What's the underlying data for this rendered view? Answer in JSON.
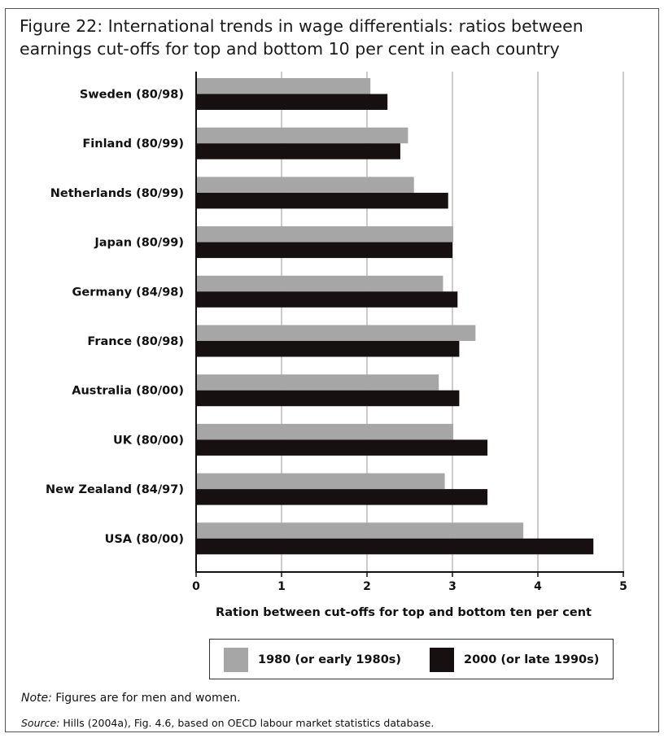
{
  "title": "Figure 22: International trends in wage differentials: ratios between earnings cut-offs for top and bottom 10 per cent in each country",
  "note": {
    "label": "Note:",
    "text": " Figures are for men and women."
  },
  "source": {
    "label": "Source:",
    "text": " Hills (2004a), Fig. 4.6, based on OECD labour market statistics database."
  },
  "colors": {
    "series_1980": "#a6a6a6",
    "series_2000": "#161010",
    "grid": "#999999"
  },
  "chart_data": {
    "type": "bar",
    "orientation": "horizontal",
    "categories": [
      "Sweden (80/98)",
      "Finland (80/99)",
      "Netherlands (80/99)",
      "Japan (80/99)",
      "Germany (84/98)",
      "France (80/98)",
      "Australia (80/00)",
      "UK (80/00)",
      "New Zealand (84/97)",
      "USA (80/00)"
    ],
    "series": [
      {
        "name": "1980 (or early 1980s)",
        "values": [
          2.04,
          2.48,
          2.55,
          3.01,
          2.89,
          3.27,
          2.84,
          3.01,
          2.91,
          3.83
        ]
      },
      {
        "name": "2000 (or late 1990s)",
        "values": [
          2.24,
          2.39,
          2.95,
          3.0,
          3.06,
          3.08,
          3.08,
          3.41,
          3.41,
          4.65
        ]
      }
    ],
    "xlabel": "Ration between cut-offs for top and bottom ten per cent",
    "ylabel": "",
    "xlim": [
      0,
      5
    ],
    "xticks": [
      "0",
      "1",
      "2",
      "3",
      "4",
      "5"
    ],
    "grid": "vertical",
    "legend_position": "bottom"
  }
}
